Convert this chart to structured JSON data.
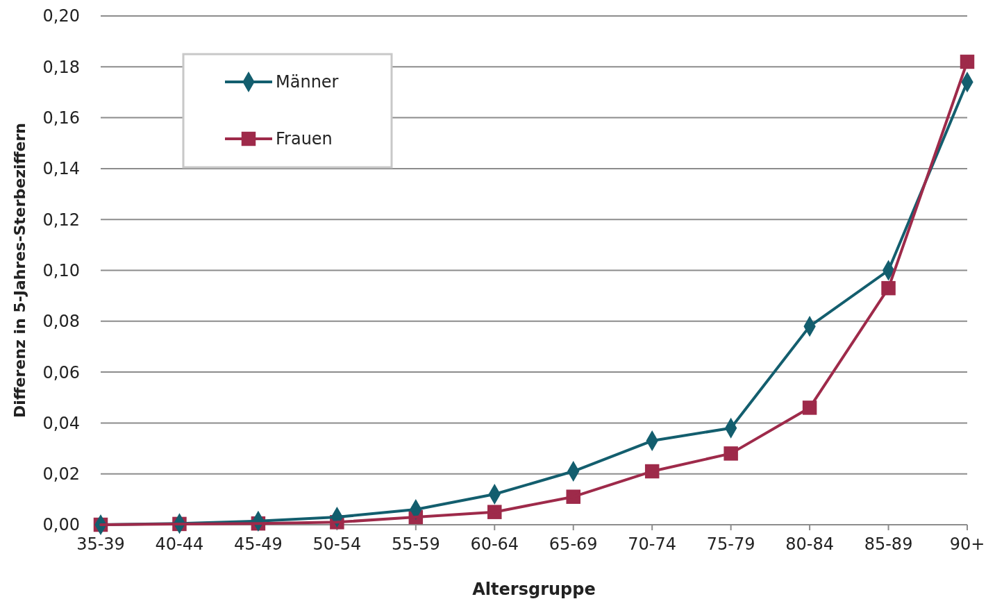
{
  "chart_data": {
    "type": "line",
    "xlabel": "Altersgruppe",
    "ylabel": "Differenz in 5-Jahres-Sterbeziffern",
    "categories": [
      "35-39",
      "40-44",
      "45-49",
      "50-54",
      "55-59",
      "60-64",
      "65-69",
      "70-74",
      "75-79",
      "80-84",
      "85-89",
      "90+"
    ],
    "series": [
      {
        "name": "Männer",
        "color": "#135e6e",
        "marker": "diamond",
        "values": [
          0,
          0.0005,
          0.0014,
          0.003,
          0.006,
          0.012,
          0.021,
          0.033,
          0.038,
          0.078,
          0.1,
          0.174
        ]
      },
      {
        "name": "Frauen",
        "color": "#9e2a4a",
        "marker": "square",
        "values": [
          0,
          0.0003,
          0.0005,
          0.001,
          0.003,
          0.005,
          0.011,
          0.021,
          0.028,
          0.046,
          0.093,
          0.182
        ]
      }
    ],
    "ylim": [
      0,
      0.2
    ],
    "yticks": [
      {
        "value": 0,
        "label": "0,00"
      },
      {
        "value": 0.02,
        "label": "0,02"
      },
      {
        "value": 0.04,
        "label": "0,04"
      },
      {
        "value": 0.06,
        "label": "0,06"
      },
      {
        "value": 0.08,
        "label": "0,08"
      },
      {
        "value": 0.1,
        "label": "0,10"
      },
      {
        "value": 0.12,
        "label": "0,12"
      },
      {
        "value": 0.14,
        "label": "0,14"
      },
      {
        "value": 0.16,
        "label": "0,16"
      },
      {
        "value": 0.18,
        "label": "0,18"
      },
      {
        "value": 0.2,
        "label": "0,20"
      }
    ],
    "grid": "y",
    "legend": "top left",
    "line_style": "solid"
  }
}
